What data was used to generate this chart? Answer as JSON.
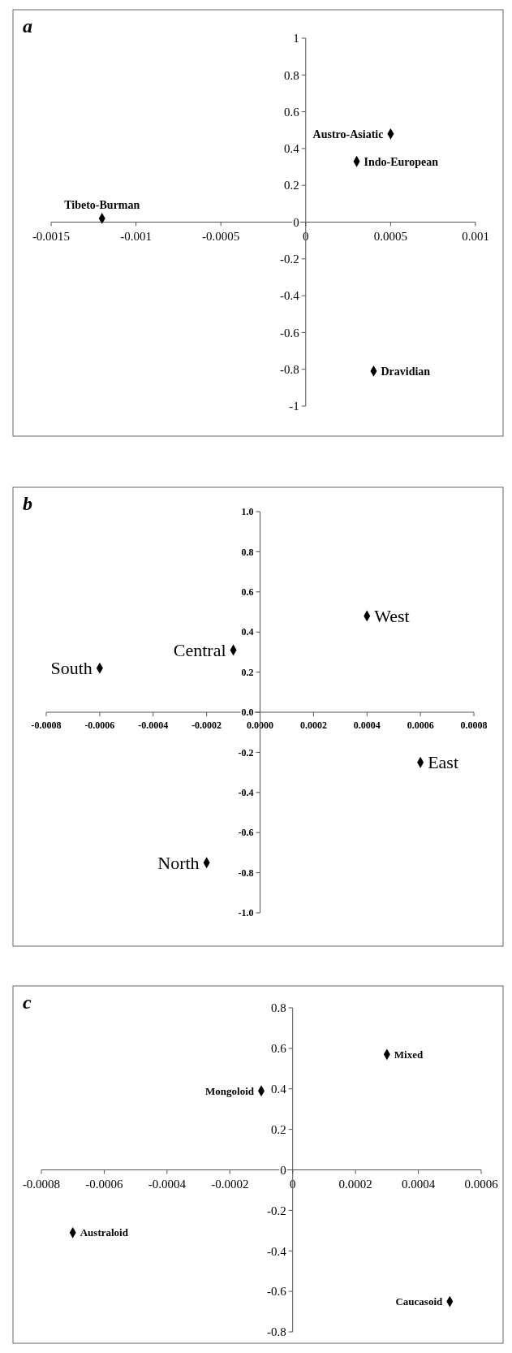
{
  "chart_data": [
    {
      "type": "scatter",
      "title": "a",
      "x": [
        -0.0012,
        0.0003,
        0.0005,
        0.0004
      ],
      "marker": "diamond",
      "series": [
        {
          "color": "#000000",
          "values": [
            0.02,
            0.33,
            0.48,
            -0.81
          ]
        }
      ],
      "xlim": [
        -0.0015,
        0.001
      ],
      "xticks": [
        -0.0015,
        -0.001,
        -0.0005,
        0,
        0.0005,
        0.001
      ],
      "ylim": [
        -1,
        1
      ],
      "yticks": [
        -1,
        -0.8,
        -0.6,
        -0.4,
        -0.2,
        0,
        0.2,
        0.4,
        0.6,
        0.8,
        1
      ],
      "annotations": [
        {
          "text": "Tibeto-Burman",
          "x": -0.0012,
          "y": 0.02
        },
        {
          "text": "Indo-European",
          "x": 0.0003,
          "y": 0.33
        },
        {
          "text": "Austro-Asiatic",
          "x": 0.0005,
          "y": 0.48
        },
        {
          "text": "Dravidian",
          "x": 0.0004,
          "y": -0.81
        }
      ]
    },
    {
      "type": "scatter",
      "title": "b",
      "x": [
        -0.0006,
        -0.0001,
        0.0004,
        0.0006,
        -0.0002
      ],
      "marker": "diamond",
      "series": [
        {
          "color": "#000000",
          "values": [
            0.22,
            0.31,
            0.48,
            -0.25,
            -0.75
          ]
        }
      ],
      "xlim": [
        -0.0008,
        0.0008
      ],
      "xticks": [
        -0.0008,
        -0.0006,
        -0.0004,
        -0.0002,
        {
          "value": 0,
          "label": "0.0000"
        },
        0.0002,
        0.0004,
        0.0006,
        0.0008
      ],
      "ylim": [
        -1,
        1
      ],
      "yticks": [
        {
          "value": -1,
          "label": "-1.0"
        },
        -0.8,
        -0.6,
        -0.4,
        -0.2,
        {
          "value": 0,
          "label": "0.0"
        },
        0.2,
        0.4,
        0.6,
        0.8,
        {
          "value": 1,
          "label": "1.0"
        }
      ],
      "annotations": [
        {
          "text": "South",
          "x": -0.0006,
          "y": 0.22
        },
        {
          "text": "Central",
          "x": -0.0001,
          "y": 0.31
        },
        {
          "text": "West",
          "x": 0.0004,
          "y": 0.48
        },
        {
          "text": "East",
          "x": 0.0006,
          "y": -0.25
        },
        {
          "text": "North",
          "x": -0.0002,
          "y": -0.75
        }
      ]
    },
    {
      "type": "scatter",
      "title": "c",
      "x": [
        0.0003,
        -0.0001,
        -0.0007,
        0.0005
      ],
      "marker": "diamond",
      "series": [
        {
          "color": "#000000",
          "values": [
            0.57,
            0.39,
            -0.31,
            -0.65
          ]
        }
      ],
      "xlim": [
        -0.0008,
        0.0006
      ],
      "xticks": [
        -0.0008,
        -0.0006,
        -0.0004,
        -0.0002,
        0,
        0.0002,
        0.0004,
        0.0006
      ],
      "ylim": [
        -0.8,
        0.8
      ],
      "yticks": [
        -0.8,
        -0.6,
        -0.4,
        -0.2,
        0,
        0.2,
        0.4,
        0.6,
        0.8
      ],
      "annotations": [
        {
          "text": "Mixed",
          "x": 0.0003,
          "y": 0.57
        },
        {
          "text": "Mongoloid",
          "x": -0.0001,
          "y": 0.39
        },
        {
          "text": "Australoid",
          "x": -0.0007,
          "y": -0.31
        },
        {
          "text": "Caucasoid",
          "x": 0.0005,
          "y": -0.65
        }
      ]
    }
  ]
}
